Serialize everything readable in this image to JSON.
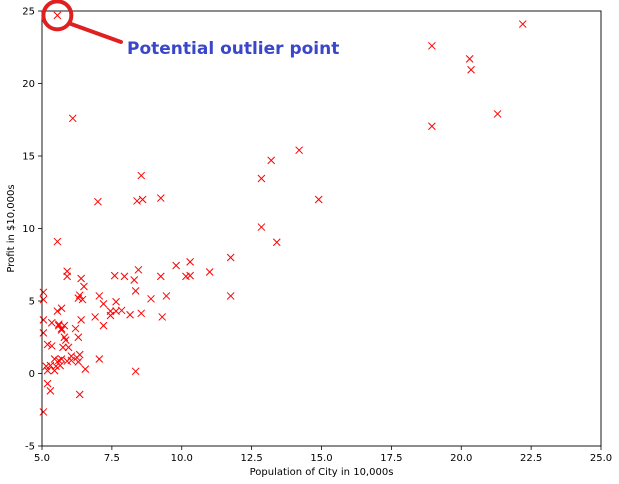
{
  "chart_data": {
    "type": "scatter",
    "title": "",
    "xlabel": "Population of City in 10,000s",
    "ylabel": "Profit in $10,000s",
    "xlim": [
      5.0,
      25.0
    ],
    "ylim": [
      -5,
      25
    ],
    "x_ticks": [
      "5.0",
      "7.5",
      "10.0",
      "12.5",
      "15.0",
      "17.5",
      "20.0",
      "22.5",
      "25.0"
    ],
    "y_ticks": [
      "-5",
      "0",
      "5",
      "10",
      "15",
      "20",
      "25"
    ],
    "grid": false,
    "marker": "x",
    "marker_color": "#ff0000",
    "annotation": {
      "text": "Potential outlier point",
      "color": "#3a47c9",
      "circle_color": "#e02020",
      "target": [
        5.55,
        24.7
      ]
    },
    "points": [
      [
        5.55,
        24.7
      ],
      [
        6.1,
        17.6
      ],
      [
        22.2,
        24.1
      ],
      [
        18.95,
        22.6
      ],
      [
        20.3,
        21.7
      ],
      [
        20.35,
        20.95
      ],
      [
        18.95,
        17.05
      ],
      [
        21.3,
        17.9
      ],
      [
        14.2,
        15.4
      ],
      [
        13.2,
        14.7
      ],
      [
        8.55,
        13.65
      ],
      [
        12.85,
        13.45
      ],
      [
        7.0,
        11.85
      ],
      [
        8.4,
        11.9
      ],
      [
        8.6,
        12.0
      ],
      [
        9.25,
        12.1
      ],
      [
        14.9,
        12.0
      ],
      [
        12.85,
        10.1
      ],
      [
        13.4,
        9.05
      ],
      [
        5.55,
        9.1
      ],
      [
        9.8,
        7.45
      ],
      [
        10.3,
        7.7
      ],
      [
        11.75,
        8.0
      ],
      [
        10.15,
        6.7
      ],
      [
        10.3,
        6.75
      ],
      [
        11.0,
        7.0
      ],
      [
        9.25,
        6.7
      ],
      [
        8.45,
        7.15
      ],
      [
        7.95,
        6.7
      ],
      [
        7.6,
        6.75
      ],
      [
        5.9,
        7.05
      ],
      [
        5.9,
        6.7
      ],
      [
        6.4,
        6.55
      ],
      [
        6.5,
        6.0
      ],
      [
        8.3,
        6.45
      ],
      [
        8.35,
        5.7
      ],
      [
        11.75,
        5.35
      ],
      [
        9.45,
        5.35
      ],
      [
        8.9,
        5.15
      ],
      [
        7.05,
        5.35
      ],
      [
        6.35,
        5.4
      ],
      [
        6.3,
        5.2
      ],
      [
        5.05,
        5.6
      ],
      [
        5.05,
        5.1
      ],
      [
        6.45,
        5.1
      ],
      [
        7.2,
        4.8
      ],
      [
        7.65,
        4.95
      ],
      [
        5.7,
        4.5
      ],
      [
        5.55,
        4.3
      ],
      [
        6.9,
        3.9
      ],
      [
        7.45,
        4.3
      ],
      [
        7.65,
        4.3
      ],
      [
        7.45,
        4.0
      ],
      [
        7.85,
        4.35
      ],
      [
        8.15,
        4.05
      ],
      [
        8.55,
        4.15
      ],
      [
        9.3,
        3.9
      ],
      [
        5.05,
        3.7
      ],
      [
        5.35,
        3.5
      ],
      [
        5.6,
        3.3
      ],
      [
        5.7,
        3.1
      ],
      [
        5.6,
        3.4
      ],
      [
        5.8,
        3.3
      ],
      [
        5.7,
        3.0
      ],
      [
        6.2,
        3.1
      ],
      [
        6.4,
        3.7
      ],
      [
        7.2,
        3.3
      ],
      [
        5.05,
        2.8
      ],
      [
        5.8,
        2.5
      ],
      [
        5.85,
        2.3
      ],
      [
        6.3,
        2.5
      ],
      [
        5.2,
        2.0
      ],
      [
        5.35,
        1.9
      ],
      [
        5.75,
        1.8
      ],
      [
        5.95,
        1.8
      ],
      [
        6.05,
        1.2
      ],
      [
        6.35,
        1.3
      ],
      [
        5.45,
        1.0
      ],
      [
        5.6,
        0.9
      ],
      [
        5.7,
        1.0
      ],
      [
        6.05,
        0.9
      ],
      [
        6.25,
        1.1
      ],
      [
        7.05,
        1.0
      ],
      [
        5.15,
        0.5
      ],
      [
        5.3,
        0.55
      ],
      [
        5.5,
        0.5
      ],
      [
        5.65,
        0.55
      ],
      [
        5.9,
        0.85
      ],
      [
        6.3,
        0.8
      ],
      [
        5.2,
        0.2
      ],
      [
        5.45,
        0.2
      ],
      [
        6.55,
        0.3
      ],
      [
        8.35,
        0.15
      ],
      [
        5.2,
        -0.7
      ],
      [
        5.3,
        -1.2
      ],
      [
        6.35,
        -1.45
      ],
      [
        5.05,
        -2.65
      ]
    ]
  }
}
